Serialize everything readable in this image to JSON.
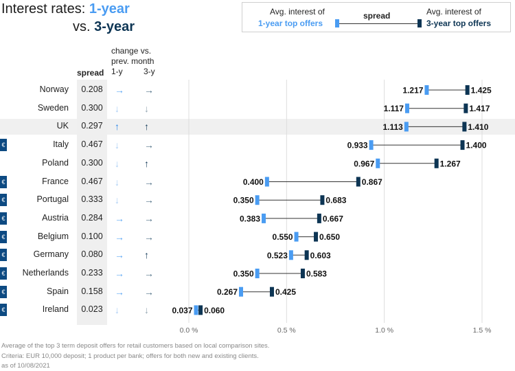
{
  "title": {
    "part1_prefix": "Interest rates: ",
    "part1_highlight": "1-year",
    "part2_prefix": "vs. ",
    "part2_highlight": "3-year"
  },
  "legend": {
    "left_line1": "Avg. interest of",
    "left_line2": "1-year top offers",
    "middle": "spread",
    "right_line1": "Avg. interest of",
    "right_line2": "3-year top offers"
  },
  "column_headers": {
    "spread": "spread",
    "change_line1": "change vs.",
    "change_line2": "prev. month",
    "one_year": "1-y",
    "three_year": "3-y"
  },
  "colors": {
    "one_year": "#4a9cf2",
    "three_year": "#0d3554",
    "connector": "#333333",
    "gridline": "#dddddd",
    "euro_badge": "#0d4a82",
    "highlight_row": "#f0f0f0"
  },
  "footer": {
    "line1": "Average of the top 3 term deposit offers for retail customers based on local comparison sites.",
    "line2": "Criteria: EUR 10,000 deposit; 1 product per bank; offers for both new and existing clients.",
    "line3": "as of 10/08/2021"
  },
  "chart_data": {
    "type": "dumbbell",
    "xlim": [
      0,
      1.5
    ],
    "x_ticks": [
      0.0,
      0.5,
      1.0,
      1.5
    ],
    "x_tick_labels": [
      "0.0 %",
      "0.5 %",
      "1.0 %",
      "1.5 %"
    ],
    "grid": true,
    "highlight_country": "UK",
    "rows": [
      {
        "country": "Norway",
        "euro": false,
        "spread": "0.208",
        "one_year": 1.217,
        "three_year": 1.425,
        "one_year_label": "1.217",
        "three_year_label": "1.425",
        "change_1y": "flat",
        "change_3y": "flat"
      },
      {
        "country": "Sweden",
        "euro": false,
        "spread": "0.300",
        "one_year": 1.117,
        "three_year": 1.417,
        "one_year_label": "1.117",
        "three_year_label": "1.417",
        "change_1y": "down",
        "change_3y": "down"
      },
      {
        "country": "UK",
        "euro": false,
        "spread": "0.297",
        "one_year": 1.113,
        "three_year": 1.41,
        "one_year_label": "1.113",
        "three_year_label": "1.410",
        "change_1y": "up",
        "change_3y": "up"
      },
      {
        "country": "Italy",
        "euro": true,
        "spread": "0.467",
        "one_year": 0.933,
        "three_year": 1.4,
        "one_year_label": "0.933",
        "three_year_label": "1.400",
        "change_1y": "down",
        "change_3y": "flat"
      },
      {
        "country": "Poland",
        "euro": false,
        "spread": "0.300",
        "one_year": 0.967,
        "three_year": 1.267,
        "one_year_label": "0.967",
        "three_year_label": "1.267",
        "change_1y": "down",
        "change_3y": "up"
      },
      {
        "country": "France",
        "euro": true,
        "spread": "0.467",
        "one_year": 0.4,
        "three_year": 0.867,
        "one_year_label": "0.400",
        "three_year_label": "0.867",
        "change_1y": "down",
        "change_3y": "flat"
      },
      {
        "country": "Portugal",
        "euro": true,
        "spread": "0.333",
        "one_year": 0.35,
        "three_year": 0.683,
        "one_year_label": "0.350",
        "three_year_label": "0.683",
        "change_1y": "down",
        "change_3y": "flat"
      },
      {
        "country": "Austria",
        "euro": true,
        "spread": "0.284",
        "one_year": 0.383,
        "three_year": 0.667,
        "one_year_label": "0.383",
        "three_year_label": "0.667",
        "change_1y": "flat",
        "change_3y": "flat"
      },
      {
        "country": "Belgium",
        "euro": true,
        "spread": "0.100",
        "one_year": 0.55,
        "three_year": 0.65,
        "one_year_label": "0.550",
        "three_year_label": "0.650",
        "change_1y": "flat",
        "change_3y": "flat"
      },
      {
        "country": "Germany",
        "euro": true,
        "spread": "0.080",
        "one_year": 0.523,
        "three_year": 0.603,
        "one_year_label": "0.523",
        "three_year_label": "0.603",
        "change_1y": "flat",
        "change_3y": "up"
      },
      {
        "country": "Netherlands",
        "euro": true,
        "spread": "0.233",
        "one_year": 0.35,
        "three_year": 0.583,
        "one_year_label": "0.350",
        "three_year_label": "0.583",
        "change_1y": "flat",
        "change_3y": "flat"
      },
      {
        "country": "Spain",
        "euro": true,
        "spread": "0.158",
        "one_year": 0.267,
        "three_year": 0.425,
        "one_year_label": "0.267",
        "three_year_label": "0.425",
        "change_1y": "flat",
        "change_3y": "flat"
      },
      {
        "country": "Ireland",
        "euro": true,
        "spread": "0.023",
        "one_year": 0.037,
        "three_year": 0.06,
        "one_year_label": "0.037",
        "three_year_label": "0.060",
        "change_1y": "down",
        "change_3y": "down"
      }
    ]
  }
}
